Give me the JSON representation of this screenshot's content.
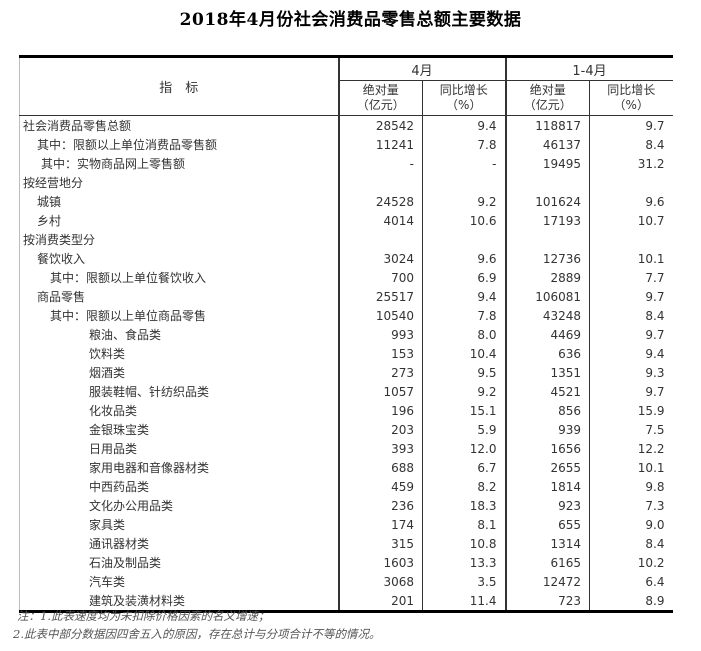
{
  "title": "2018年4月份社会消费品零售总额主要数据",
  "table": {
    "indicator_header": "指　标",
    "col_groups": [
      {
        "label": "4月",
        "subcols": [
          "绝对量\n（亿元）",
          "同比增长\n（%）"
        ]
      },
      {
        "label": "1-4月",
        "subcols": [
          "绝对量\n（亿元）",
          "同比增长\n（%）"
        ]
      }
    ],
    "rows": [
      {
        "label": "社会消费品零售总额",
        "indent": 0,
        "values": [
          "28542",
          "9.4",
          "118817",
          "9.7"
        ]
      },
      {
        "label": "其中：限额以上单位消费品零售额",
        "indent": 1,
        "values": [
          "11241",
          "7.8",
          "46137",
          "8.4"
        ]
      },
      {
        "label": "其中：实物商品网上零售额",
        "indent": 1.2,
        "values": [
          "-",
          "-",
          "19495",
          "31.2"
        ]
      },
      {
        "label": "按经营地分",
        "indent": 0,
        "values": [
          "",
          "",
          "",
          ""
        ]
      },
      {
        "label": "城镇",
        "indent": 1,
        "values": [
          "24528",
          "9.2",
          "101624",
          "9.6"
        ]
      },
      {
        "label": "乡村",
        "indent": 1,
        "values": [
          "4014",
          "10.6",
          "17193",
          "10.7"
        ]
      },
      {
        "label": "按消费类型分",
        "indent": 0,
        "values": [
          "",
          "",
          "",
          ""
        ]
      },
      {
        "label": "餐饮收入",
        "indent": 1,
        "values": [
          "3024",
          "9.6",
          "12736",
          "10.1"
        ]
      },
      {
        "label": "其中：限额以上单位餐饮收入",
        "indent": 2,
        "values": [
          "700",
          "6.9",
          "2889",
          "7.7"
        ]
      },
      {
        "label": "商品零售",
        "indent": 1,
        "values": [
          "25517",
          "9.4",
          "106081",
          "9.7"
        ]
      },
      {
        "label": "其中：限额以上单位商品零售",
        "indent": 2,
        "values": [
          "10540",
          "7.8",
          "43248",
          "8.4"
        ]
      },
      {
        "label": "粮油、食品类",
        "indent": 3,
        "values": [
          "993",
          "8.0",
          "4469",
          "9.7"
        ]
      },
      {
        "label": "饮料类",
        "indent": 3,
        "values": [
          "153",
          "10.4",
          "636",
          "9.4"
        ]
      },
      {
        "label": "烟酒类",
        "indent": 3,
        "values": [
          "273",
          "9.5",
          "1351",
          "9.3"
        ]
      },
      {
        "label": "服装鞋帽、针纺织品类",
        "indent": 3,
        "values": [
          "1057",
          "9.2",
          "4521",
          "9.7"
        ]
      },
      {
        "label": "化妆品类",
        "indent": 3,
        "values": [
          "196",
          "15.1",
          "856",
          "15.9"
        ]
      },
      {
        "label": "金银珠宝类",
        "indent": 3,
        "values": [
          "203",
          "5.9",
          "939",
          "7.5"
        ]
      },
      {
        "label": "日用品类",
        "indent": 3,
        "values": [
          "393",
          "12.0",
          "1656",
          "12.2"
        ]
      },
      {
        "label": "家用电器和音像器材类",
        "indent": 3,
        "values": [
          "688",
          "6.7",
          "2655",
          "10.1"
        ]
      },
      {
        "label": "中西药品类",
        "indent": 3,
        "values": [
          "459",
          "8.2",
          "1814",
          "9.8"
        ]
      },
      {
        "label": "文化办公用品类",
        "indent": 3,
        "values": [
          "236",
          "18.3",
          "923",
          "7.3"
        ]
      },
      {
        "label": "家具类",
        "indent": 3,
        "values": [
          "174",
          "8.1",
          "655",
          "9.0"
        ]
      },
      {
        "label": "通讯器材类",
        "indent": 3,
        "values": [
          "315",
          "10.8",
          "1314",
          "8.4"
        ]
      },
      {
        "label": "石油及制品类",
        "indent": 3,
        "values": [
          "1603",
          "13.3",
          "6165",
          "10.2"
        ]
      },
      {
        "label": "汽车类",
        "indent": 3,
        "values": [
          "3068",
          "3.5",
          "12472",
          "6.4"
        ]
      },
      {
        "label": "建筑及装潢材料类",
        "indent": 3,
        "values": [
          "201",
          "11.4",
          "723",
          "8.9"
        ]
      }
    ]
  },
  "notes": [
    "注：1.此表速度均为未扣除价格因素的名义增速；",
    "2.此表中部分数据因四舍五入的原因，存在总计与分项合计不等的情况。"
  ]
}
